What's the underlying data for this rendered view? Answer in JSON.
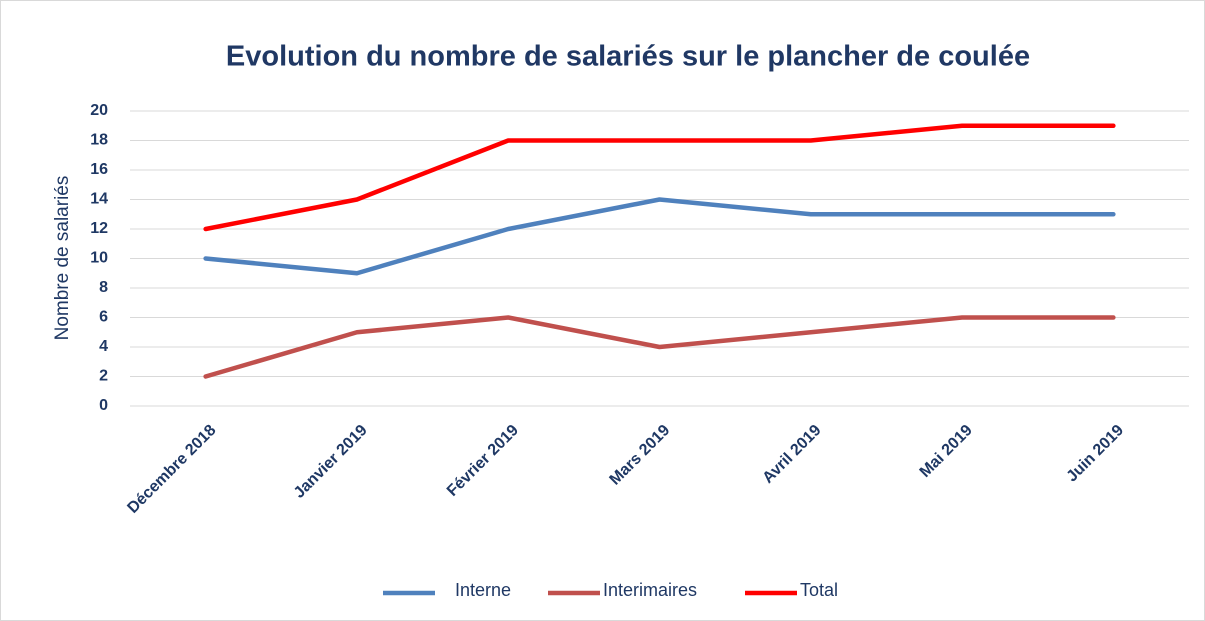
{
  "chart_data": {
    "type": "line",
    "title": "Evolution du nombre de salariés sur le plancher de coulée",
    "y_label": "Nombre de salariés",
    "categories": [
      "Décembre 2018",
      "Janvier 2019",
      "Février 2019",
      "Mars 2019",
      "Avril 2019",
      "Mai 2019",
      "Juin 2019"
    ],
    "series": [
      {
        "name": "Interne",
        "color": "#4f81bd",
        "values": [
          10,
          9,
          12,
          14,
          13,
          13,
          13
        ]
      },
      {
        "name": "Interimaires",
        "color": "#c0504d",
        "values": [
          2,
          5,
          6,
          4,
          5,
          6,
          6
        ]
      },
      {
        "name": "Total",
        "color": "#ff0000",
        "values": [
          12,
          14,
          18,
          18,
          18,
          19,
          19
        ]
      }
    ],
    "ylim": [
      0,
      20
    ],
    "yticks": [
      0,
      2,
      4,
      6,
      8,
      10,
      12,
      14,
      16,
      18,
      20
    ],
    "grid": true,
    "legend": "bottom"
  }
}
